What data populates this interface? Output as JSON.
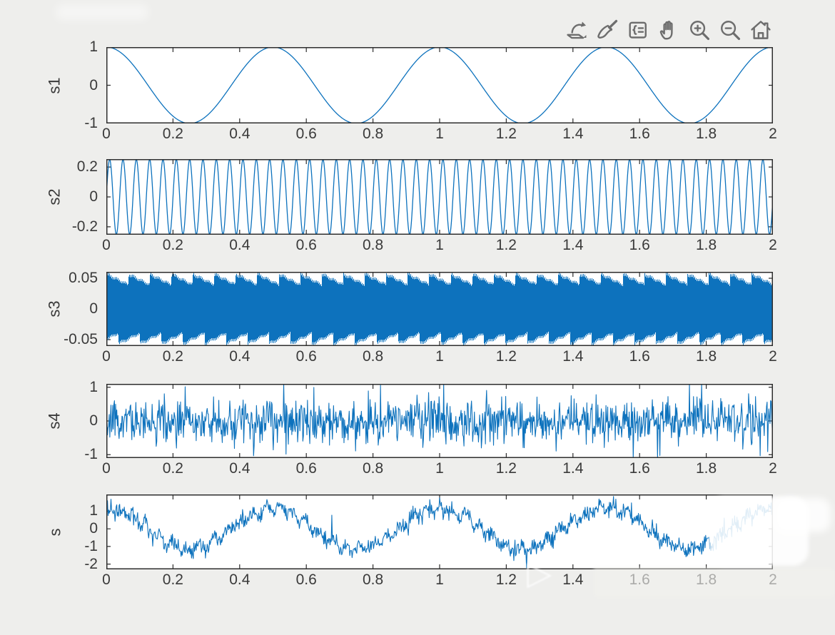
{
  "window": {
    "background_color": "#eeeeec",
    "plot_background": "#ffffff"
  },
  "toolbar": {
    "buttons": [
      {
        "id": "export",
        "icon": "export-icon"
      },
      {
        "id": "brush",
        "icon": "brush-icon"
      },
      {
        "id": "datatips",
        "icon": "datatip-icon"
      },
      {
        "id": "pan",
        "icon": "pan-icon"
      },
      {
        "id": "zoom-in",
        "icon": "zoom-in-icon"
      },
      {
        "id": "zoom-out",
        "icon": "zoom-out-icon"
      },
      {
        "id": "home",
        "icon": "home-icon"
      }
    ]
  },
  "chart_data": [
    {
      "type": "line",
      "ylabel": "s1",
      "xlim": [
        0,
        2
      ],
      "ylim": [
        -1,
        1
      ],
      "xtick_values": [
        0,
        0.2,
        0.4,
        0.6,
        0.8,
        1,
        1.2,
        1.4,
        1.6,
        1.8,
        2
      ],
      "xtick_labels": [
        "0",
        "0.2",
        "0.4",
        "0.6",
        "0.8",
        "1",
        "1.2",
        "1.4",
        "1.6",
        "1.8",
        "2"
      ],
      "yticks": [
        {
          "value": 1,
          "label": "1"
        },
        {
          "value": 0,
          "label": "0"
        },
        {
          "value": -1,
          "label": "-1"
        }
      ],
      "series": {
        "kind": "cos",
        "description": "cosine, amplitude 1, frequency 2 Hz over 0-2 s (4 cycles)",
        "amplitude": 1,
        "frequency_hz": 2
      },
      "line_color": "#0d72bd",
      "grid": false
    },
    {
      "type": "line",
      "ylabel": "s2",
      "xlim": [
        0,
        2
      ],
      "ylim": [
        -0.253,
        0.253
      ],
      "xtick_values": [
        0,
        0.2,
        0.4,
        0.6,
        0.8,
        1,
        1.2,
        1.4,
        1.6,
        1.8,
        2
      ],
      "xtick_labels": [
        "0",
        "0.2",
        "0.4",
        "0.6",
        "0.8",
        "1",
        "1.2",
        "1.4",
        "1.6",
        "1.8",
        "2"
      ],
      "yticks": [
        {
          "value": 0.2,
          "label": "0.2"
        },
        {
          "value": 0,
          "label": "0"
        },
        {
          "value": -0.2,
          "label": "-0.2"
        }
      ],
      "series": {
        "kind": "sin",
        "description": "sine, amplitude 0.25, frequency ~25 Hz (~50 cycles over 0-2 s)",
        "amplitude": 0.25,
        "frequency_hz": 25
      },
      "line_color": "#0d72bd",
      "grid": false
    },
    {
      "type": "line",
      "ylabel": "s3",
      "xlim": [
        0,
        2
      ],
      "ylim": [
        -0.0605,
        0.0605
      ],
      "xtick_values": [
        0,
        0.2,
        0.4,
        0.6,
        0.8,
        1,
        1.2,
        1.4,
        1.6,
        1.8,
        2
      ],
      "xtick_labels": [
        "0",
        "0.2",
        "0.4",
        "0.6",
        "0.8",
        "1",
        "1.2",
        "1.4",
        "1.6",
        "1.8",
        "2"
      ],
      "yticks": [
        {
          "value": 0.05,
          "label": "0.05"
        },
        {
          "value": 0,
          "label": "0"
        },
        {
          "value": -0.05,
          "label": "-0.05"
        }
      ],
      "series": {
        "kind": "dense-band",
        "description": "very high-frequency oscillation, amplitude ~0.06; renders as solid aliased band with sawtooth envelope",
        "envelope_max": 0.0605,
        "envelope_min": 0.042,
        "beat_rate_hz": 15.5
      },
      "line_color": "#0d72bd",
      "grid": false
    },
    {
      "type": "line",
      "ylabel": "s4",
      "xlim": [
        0,
        2
      ],
      "ylim": [
        -1.1,
        1.1
      ],
      "xtick_values": [
        0,
        0.2,
        0.4,
        0.6,
        0.8,
        1,
        1.2,
        1.4,
        1.6,
        1.8,
        2
      ],
      "xtick_labels": [
        "0",
        "0.2",
        "0.4",
        "0.6",
        "0.8",
        "1",
        "1.2",
        "1.4",
        "1.6",
        "1.8",
        "2"
      ],
      "yticks": [
        {
          "value": 1,
          "label": "1"
        },
        {
          "value": 0,
          "label": "0"
        },
        {
          "value": -1,
          "label": "-1"
        }
      ],
      "series": {
        "kind": "noise",
        "description": "zero-mean random noise, std ~0.3, occasional spikes to +/-1",
        "std": 0.32,
        "seed": 20
      },
      "line_color": "#0d72bd",
      "grid": false
    },
    {
      "type": "line",
      "ylabel": "s",
      "xlim": [
        0,
        2
      ],
      "ylim": [
        -2.3,
        1.95
      ],
      "xtick_values": [
        0,
        0.2,
        0.4,
        0.6,
        0.8,
        1,
        1.2,
        1.4,
        1.6,
        1.8,
        2
      ],
      "xtick_labels": [
        "0",
        "0.2",
        "0.4",
        "0.6",
        "0.8",
        "1",
        "1.2",
        "1.4",
        "1.6",
        "1.8",
        "2"
      ],
      "yticks": [
        {
          "value": 1,
          "label": "1"
        },
        {
          "value": 0,
          "label": "0"
        },
        {
          "value": -1,
          "label": "-1"
        },
        {
          "value": -2,
          "label": "-2"
        }
      ],
      "series": {
        "kind": "noisy-cos",
        "description": "sum signal: 2 Hz cosine (amp ~1.15) + ~25 Hz tone (amp ~0.2) + noise (std ~0.25)",
        "carrier_amplitude": 1.15,
        "carrier_frequency_hz": 2,
        "tone_amplitude": 0.2,
        "tone_frequency_hz": 25,
        "noise_std": 0.23,
        "seed": 77
      },
      "line_color": "#0d72bd",
      "grid": false
    }
  ],
  "watermarks": [
    "faint-white-smudge-top-left",
    "play-triangle-bottom-center",
    "white-blob-bottom-right-over-plot",
    "white-smudge-over-right-x-labels"
  ],
  "glyphs": {
    "play_triangle": "▷"
  }
}
